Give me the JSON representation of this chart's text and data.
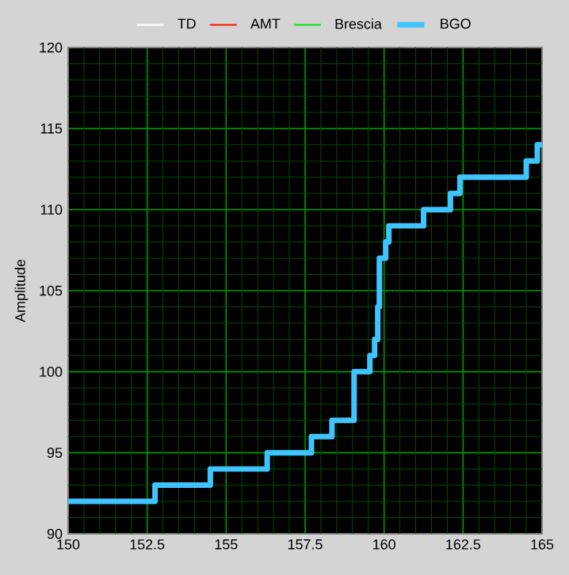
{
  "chart_data": {
    "type": "step",
    "ylabel": "Amplitude",
    "xlim": [
      150,
      165
    ],
    "ylim": [
      90,
      120
    ],
    "xticks": [
      150,
      {
        "value": 150.5,
        "label": null
      },
      {
        "value": 151,
        "label": null
      },
      {
        "value": 151.5,
        "label": null
      },
      {
        "value": 152,
        "label": null
      },
      152.5,
      {
        "value": 153,
        "label": null
      },
      {
        "value": 153.5,
        "label": null
      },
      {
        "value": 154,
        "label": null
      },
      {
        "value": 154.5,
        "label": null
      },
      155,
      {
        "value": 155.5,
        "label": null
      },
      {
        "value": 156,
        "label": null
      },
      {
        "value": 156.5,
        "label": null
      },
      {
        "value": 157,
        "label": null
      },
      157.5,
      {
        "value": 158,
        "label": null
      },
      {
        "value": 158.5,
        "label": null
      },
      {
        "value": 159,
        "label": null
      },
      {
        "value": 159.5,
        "label": null
      },
      160,
      {
        "value": 160.5,
        "label": null
      },
      {
        "value": 161,
        "label": null
      },
      {
        "value": 161.5,
        "label": null
      },
      {
        "value": 162,
        "label": null
      },
      162.5,
      {
        "value": 163,
        "label": null
      },
      {
        "value": 163.5,
        "label": null
      },
      {
        "value": 164,
        "label": null
      },
      {
        "value": 164.5,
        "label": null
      },
      165
    ],
    "yticks": [
      90,
      {
        "value": 91,
        "label": null
      },
      {
        "value": 92,
        "label": null
      },
      {
        "value": 93,
        "label": null
      },
      {
        "value": 94,
        "label": null
      },
      95,
      {
        "value": 96,
        "label": null
      },
      {
        "value": 97,
        "label": null
      },
      {
        "value": 98,
        "label": null
      },
      {
        "value": 99,
        "label": null
      },
      100,
      {
        "value": 101,
        "label": null
      },
      {
        "value": 102,
        "label": null
      },
      {
        "value": 103,
        "label": null
      },
      {
        "value": 104,
        "label": null
      },
      105,
      {
        "value": 106,
        "label": null
      },
      {
        "value": 107,
        "label": null
      },
      {
        "value": 108,
        "label": null
      },
      {
        "value": 109,
        "label": null
      },
      110,
      {
        "value": 111,
        "label": null
      },
      {
        "value": 112,
        "label": null
      },
      {
        "value": 113,
        "label": null
      },
      {
        "value": 114,
        "label": null
      },
      115,
      {
        "value": 116,
        "label": null
      },
      {
        "value": 117,
        "label": null
      },
      {
        "value": 118,
        "label": null
      },
      {
        "value": 119,
        "label": null
      },
      120
    ],
    "grid": true,
    "legend": "top",
    "line_style": "solid",
    "marker": "none",
    "series": [
      {
        "name": "TD",
        "color": "#ffffff"
      },
      {
        "name": "AMT",
        "color": "#ff2020"
      },
      {
        "name": "Brescia",
        "color": "#20e020"
      },
      {
        "name": "BGO",
        "color": "#40c4ff",
        "x": [
          150,
          152.75,
          154.5,
          156.3,
          157.7,
          158.35,
          159.05,
          159.55,
          159.7,
          159.8,
          159.85,
          160.05,
          160.15,
          161.25,
          162.1,
          162.4,
          164.5,
          164.85,
          165
        ],
        "values": [
          92,
          93,
          94,
          95,
          96,
          97,
          100,
          101,
          102,
          104,
          107,
          108,
          109,
          110,
          111,
          112,
          113,
          114,
          114
        ]
      }
    ]
  }
}
